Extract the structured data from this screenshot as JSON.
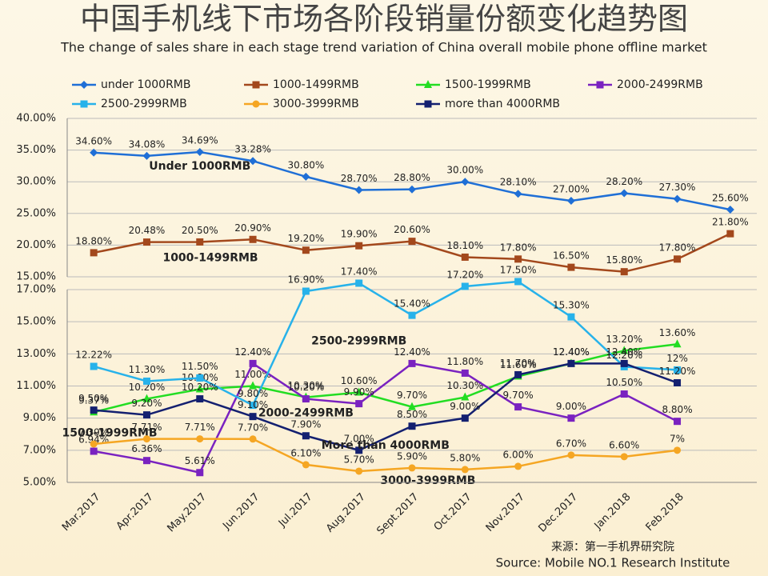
{
  "title": "中国手机线下市场各阶段销量份额变化趋势图",
  "subtitle": "The change of sales share in each stage trend variation of China overall mobile phone offline market",
  "source_cn": "来源：第一手机界研究院",
  "source_en": "Source: Mobile NO.1 Research Institute",
  "chart_data": [
    {
      "type": "line",
      "ylim": [
        15,
        40
      ],
      "yticks": [
        {
          "value": 15,
          "label": "15.00%"
        },
        {
          "value": 20,
          "label": "20.00%"
        },
        {
          "value": 25,
          "label": "25.00%"
        },
        {
          "value": 30,
          "label": "30.00%"
        },
        {
          "value": 35,
          "label": "35.00%"
        },
        {
          "value": 40,
          "label": "40.00%"
        }
      ],
      "grid": true,
      "series": [
        {
          "name": "under 1000RMB",
          "annotation": "Under 1000RMB",
          "color": "#1f6fd6",
          "marker": "diamond",
          "values": [
            34.6,
            34.08,
            34.69,
            33.28,
            30.8,
            28.7,
            28.8,
            30.0,
            28.1,
            27.0,
            28.2,
            27.3,
            25.6
          ],
          "value_labels": [
            "34.60%",
            "34.08%",
            "34.69%",
            "33.28%",
            "30.80%",
            "28.70%",
            "28.80%",
            "30.00%",
            "28.10%",
            "27.00%",
            "28.20%",
            "27.30%",
            "25.60%"
          ]
        },
        {
          "name": "1000-1499RMB",
          "annotation": "1000-1499RMB",
          "color": "#a3481c",
          "marker": "square",
          "values": [
            18.8,
            20.48,
            20.5,
            20.9,
            19.2,
            19.9,
            20.6,
            18.1,
            17.8,
            16.5,
            15.8,
            17.8,
            21.8
          ],
          "value_labels": [
            "18.80%",
            "20.48%",
            "20.50%",
            "20.90%",
            "19.20%",
            "19.90%",
            "20.60%",
            "18.10%",
            "17.80%",
            "16.50%",
            "15.80%",
            "17.80%",
            "21.80%"
          ]
        }
      ]
    },
    {
      "type": "line",
      "ylim": [
        5,
        17
      ],
      "yticks": [
        {
          "value": 5,
          "label": "5.00%"
        },
        {
          "value": 7,
          "label": "7.00%"
        },
        {
          "value": 9,
          "label": "9.00%"
        },
        {
          "value": 11,
          "label": "11.00%"
        },
        {
          "value": 13,
          "label": "13.00%"
        },
        {
          "value": 15,
          "label": "15.00%"
        },
        {
          "value": 17,
          "label": "17.00%"
        }
      ],
      "grid": true,
      "categories": [
        "Mar.2017",
        "Apr.2017",
        "May.2017",
        "Jun.2017",
        "Jul.2017",
        "Aug.2017",
        "Sept.2017",
        "Oct.2017",
        "Nov.2017",
        "Dec.2017",
        "Jan.2018",
        "Feb.2018"
      ],
      "series": [
        {
          "name": "1500-1999RMB",
          "annotation": "1500-1999RMB",
          "color": "#22dd22",
          "marker": "triangle",
          "values": [
            9.37,
            10.2,
            10.8,
            11.0,
            10.3,
            10.6,
            9.7,
            10.3,
            11.6,
            12.4,
            13.2,
            13.6
          ],
          "value_labels": [
            "9.37%",
            "10.20%",
            "10.80%",
            "11.00%",
            "10.30%",
            "10.60%",
            "9.70%",
            "10.30%",
            "11.60%",
            "12.40%",
            "13.20%",
            "13.60%"
          ]
        },
        {
          "name": "2000-2499RMB",
          "annotation": "2000-2499RMB",
          "color": "#7a22c0",
          "marker": "square",
          "values": [
            6.94,
            6.36,
            5.61,
            12.4,
            10.2,
            9.9,
            12.4,
            11.8,
            9.7,
            9.0,
            10.5,
            8.8
          ],
          "value_labels": [
            "6.94%",
            "6.36%",
            "5.61%",
            "12.40%",
            "10.20%",
            "9.90%",
            "12.40%",
            "11.80%",
            "9.70%",
            "9.00%",
            "10.50%",
            "8.80%"
          ]
        },
        {
          "name": "2500-2999RMB",
          "annotation": "2500-2999RMB",
          "color": "#27b2ea",
          "marker": "square",
          "values": [
            12.22,
            11.3,
            11.5,
            9.8,
            16.9,
            17.4,
            15.4,
            17.2,
            17.5,
            15.3,
            12.2,
            12
          ],
          "value_labels": [
            "12.22%",
            "11.30%",
            "11.50%",
            "9.80%",
            "16.90%",
            "17.40%",
            "15.40%",
            "17.20%",
            "17.50%",
            "15.30%",
            "12.20%",
            "12%"
          ]
        },
        {
          "name": "3000-3999RMB",
          "annotation": "3000-3999RMB",
          "color": "#f5a623",
          "marker": "circle",
          "values": [
            7.39,
            7.71,
            7.71,
            7.7,
            6.1,
            5.7,
            5.9,
            5.8,
            6.0,
            6.7,
            6.6,
            7
          ],
          "value_labels": [
            "7.39%",
            "7.71%",
            "7.71%",
            "7.70%",
            "6.10%",
            "5.70%",
            "5.90%",
            "5.80%",
            "6.00%",
            "6.70%",
            "6.60%",
            "7%"
          ]
        },
        {
          "name": "more than 4000RMB",
          "annotation": "More than 4000RMB",
          "color": "#142070",
          "marker": "square",
          "values": [
            9.5,
            9.2,
            10.2,
            9.1,
            7.9,
            7.0,
            8.5,
            9.0,
            11.7,
            12.4,
            12.4,
            11.2
          ],
          "value_labels": [
            "9.50%",
            "9.20%",
            "10.20%",
            "9.10%",
            "7.90%",
            "7.00%",
            "8.50%",
            "9.00%",
            "11.70%",
            "12.40%",
            "12.40%",
            "11.20%"
          ]
        }
      ]
    }
  ]
}
